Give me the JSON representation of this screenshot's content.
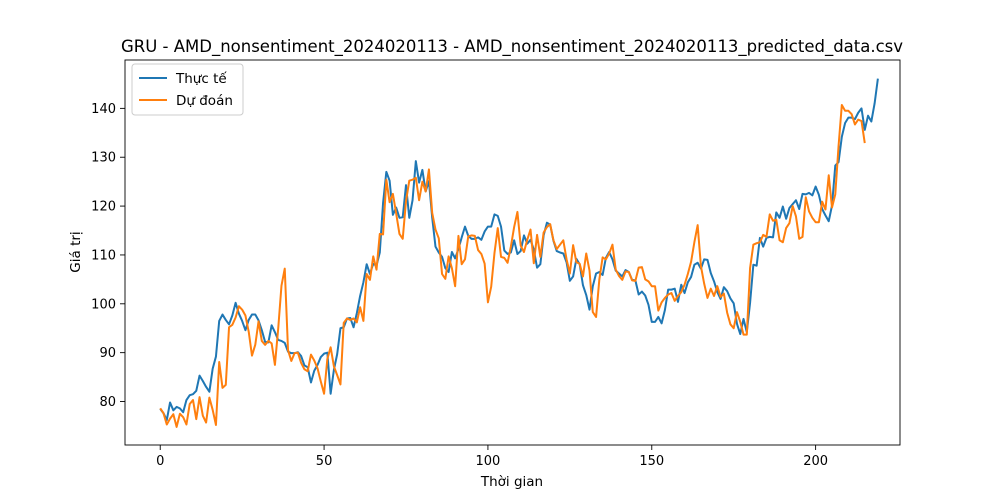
{
  "chart_data": {
    "type": "line",
    "title": "GRU - AMD_nonsentiment_2024020113 - AMD_nonsentiment_2024020113_predicted_data.csv",
    "xlabel": "Thời gian",
    "ylabel": "Giá trị",
    "xlim": [
      -10.75,
      225.75
    ],
    "ylim": [
      71.1,
      149.9
    ],
    "xticks": [
      0,
      50,
      100,
      150,
      200
    ],
    "yticks": [
      80,
      90,
      100,
      110,
      120,
      130,
      140
    ],
    "grid": false,
    "legend_position": "top-left",
    "colors": {
      "actual": "#1f77b4",
      "predicted": "#ff7f0e"
    },
    "series": [
      {
        "name": "Thực tế",
        "color": "#1f77b4",
        "values": [
          78.5,
          77.6,
          76.2,
          79.8,
          78.2,
          78.9,
          78.6,
          77.8,
          80.3,
          81.3,
          81.5,
          82.2,
          85.3,
          84.2,
          83.0,
          82.0,
          86.7,
          89.2,
          96.5,
          97.8,
          96.7,
          95.8,
          97.6,
          100.2,
          98.0,
          96.5,
          94.6,
          96.7,
          97.8,
          97.8,
          96.6,
          94.6,
          92.2,
          92.1,
          95.6,
          94.2,
          92.6,
          92.4,
          92.0,
          90.2,
          89.9,
          89.9,
          90.1,
          89.3,
          87.4,
          87.0,
          83.9,
          86.3,
          87.5,
          89.1,
          89.8,
          90.0,
          81.6,
          86.5,
          89.7,
          95.0,
          95.2,
          97.0,
          97.1,
          95.2,
          98.1,
          101.6,
          104.4,
          108.1,
          106.1,
          108.2,
          107.8,
          110.5,
          120.6,
          127.0,
          125.2,
          118.2,
          119.7,
          117.6,
          117.7,
          124.3,
          117.6,
          121.2,
          129.2,
          124.8,
          127.4,
          123.0,
          125.1,
          117.6,
          111.7,
          110.5,
          109.6,
          107.3,
          106.5,
          110.6,
          109.3,
          111.2,
          113.6,
          115.8,
          113.9,
          113.3,
          113.3,
          113.6,
          113.1,
          114.8,
          115.8,
          115.8,
          118.3,
          118.0,
          115.8,
          110.9,
          110.2,
          110.5,
          113.0,
          110.2,
          110.8,
          114.0,
          112.3,
          113.1,
          111.1,
          107.4,
          108.1,
          114.0,
          116.6,
          116.2,
          112.9,
          110.8,
          110.5,
          110.3,
          108.5,
          104.7,
          105.6,
          109.2,
          108.1,
          103.8,
          101.8,
          98.8,
          103.6,
          106.2,
          106.5,
          105.9,
          109.4,
          110.6,
          109.1,
          106.8,
          106.2,
          105.6,
          106.9,
          106.5,
          104.9,
          104.8,
          101.9,
          102.5,
          101.7,
          99.8,
          96.3,
          96.3,
          97.3,
          96.0,
          98.7,
          102.9,
          102.9,
          103.1,
          100.4,
          103.9,
          102.2,
          104.4,
          105.5,
          108.0,
          108.4,
          107.2,
          109.1,
          109.0,
          106.3,
          104.6,
          102.4,
          101.0,
          103.4,
          102.6,
          101.1,
          100.1,
          95.9,
          93.8,
          96.9,
          94.2,
          100.2,
          108.0,
          107.8,
          113.5,
          111.7,
          113.5,
          113.7,
          113.6,
          118.7,
          117.6,
          119.9,
          117.4,
          119.6,
          120.4,
          121.2,
          119.4,
          122.5,
          122.4,
          122.7,
          122.2,
          124.0,
          122.3,
          119.4,
          118.1,
          116.9,
          120.1,
          128.3,
          129.0,
          134.2,
          137.0,
          138.1,
          138.1,
          137.8,
          139.1,
          140.0,
          135.6,
          138.5,
          137.3,
          141.0,
          146.1
        ]
      },
      {
        "name": "Dự đoán",
        "color": "#ff7f0e",
        "values": [
          78.6,
          77.6,
          75.3,
          76.5,
          77.4,
          74.8,
          77.5,
          76.8,
          75.3,
          79.5,
          80.3,
          76.4,
          80.9,
          77.1,
          75.7,
          80.8,
          78.3,
          75.2,
          88.1,
          82.8,
          83.4,
          95.2,
          95.7,
          97.2,
          99.5,
          98.8,
          97.6,
          94.3,
          89.4,
          91.6,
          96.4,
          92.4,
          91.6,
          92.4,
          91.9,
          87.5,
          94.9,
          103.7,
          107.2,
          90.5,
          88.3,
          89.9,
          90.0,
          87.9,
          86.6,
          86.2,
          89.6,
          88.4,
          86.8,
          84.1,
          81.6,
          88.7,
          91.1,
          87.2,
          85.4,
          83.5,
          96.1,
          97.0,
          96.7,
          97.0,
          96.2,
          99.3,
          96.5,
          106.1,
          104.9,
          109.7,
          107.0,
          114.3,
          114.2,
          125.4,
          120.8,
          122.5,
          118.5,
          114.3,
          113.3,
          121.0,
          125.2,
          125.4,
          125.8,
          121.2,
          125.0,
          123.0,
          127.5,
          118.6,
          115.2,
          113.4,
          106.1,
          105.1,
          109.7,
          107.3,
          103.6,
          113.9,
          108.1,
          109.1,
          113.8,
          114.0,
          113.9,
          111.0,
          110.2,
          108.2,
          100.3,
          103.5,
          110.4,
          115.5,
          109.6,
          109.4,
          108.4,
          111.7,
          115.7,
          118.8,
          111.9,
          110.6,
          113.1,
          115.2,
          108.3,
          114.1,
          109.6,
          114.6,
          115.7,
          116.3,
          113.0,
          111.2,
          112.1,
          113.0,
          109.1,
          106.2,
          112.0,
          108.5,
          108.2,
          105.6,
          110.3,
          106.8,
          98.3,
          97.3,
          105.0,
          109.5,
          109.1,
          110.3,
          112.1,
          107.0,
          105.7,
          104.9,
          106.6,
          106.5,
          104.8,
          104.7,
          107.4,
          107.5,
          105.0,
          104.6,
          103.6,
          103.6,
          98.6,
          100.3,
          101.2,
          101.9,
          102.2,
          100.6,
          101.6,
          102.4,
          103.9,
          106.1,
          108.6,
          112.6,
          116.1,
          107.7,
          104.1,
          101.2,
          103.1,
          101.6,
          103.6,
          101.4,
          102.1,
          98.2,
          95.8,
          95.0,
          98.3,
          96.3,
          93.7,
          93.7,
          107.3,
          112.1,
          112.4,
          112.6,
          114.1,
          113.7,
          118.3,
          117.0,
          117.2,
          113.0,
          112.6,
          115.5,
          116.5,
          120.0,
          117.9,
          113.3,
          113.7,
          121.8,
          118.9,
          117.6,
          116.7,
          116.7,
          120.9,
          119.3,
          126.3,
          119.7,
          122.4,
          132.3,
          140.7,
          139.5,
          139.5,
          138.8,
          136.7,
          137.7,
          137.4,
          132.9
        ]
      }
    ]
  }
}
